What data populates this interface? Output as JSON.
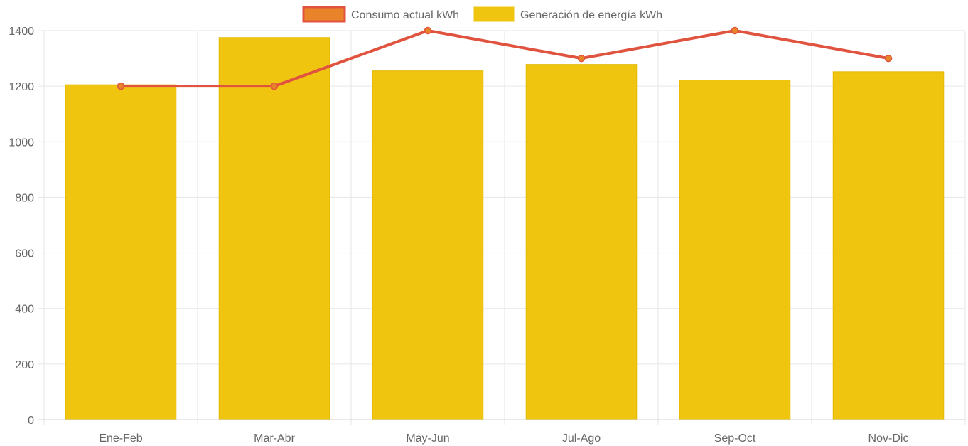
{
  "chart_data": {
    "type": "bar",
    "title": "",
    "xlabel": "",
    "ylabel": "",
    "categories": [
      "Ene-Feb",
      "Mar-Abr",
      "May-Jun",
      "Jul-Ago",
      "Sep-Oct",
      "Nov-Dic"
    ],
    "ylim": [
      0,
      1400
    ],
    "yticks": [
      0,
      200,
      400,
      600,
      800,
      1000,
      1200,
      1400
    ],
    "grid": true,
    "legend_position": "top-center",
    "series": [
      {
        "name": "Consumo actual kWh",
        "type": "line",
        "values": [
          1200,
          1200,
          1400,
          1300,
          1400,
          1300
        ],
        "color": "#e0533f",
        "point_fill": "#e8832a"
      },
      {
        "name": "Generación de energía kWh",
        "type": "bar",
        "values": [
          1205,
          1375,
          1255,
          1278,
          1222,
          1252
        ],
        "color": "#f0c510"
      }
    ]
  }
}
